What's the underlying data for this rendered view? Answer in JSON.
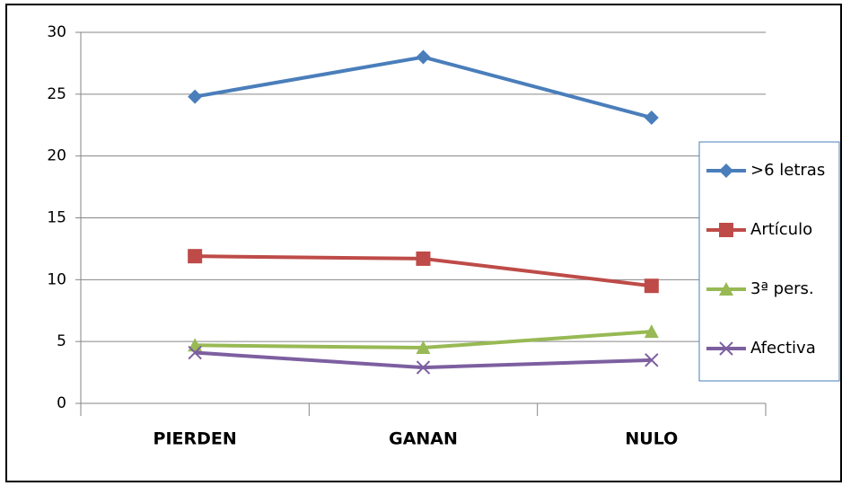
{
  "chart_data": {
    "type": "line",
    "categories": [
      "PIERDEN",
      "GANAN",
      "NULO"
    ],
    "series": [
      {
        "name": ">6 letras",
        "color": "#4a7ebb",
        "marker": "diamond",
        "values": [
          24.8,
          28,
          23.1
        ]
      },
      {
        "name": "Artículo",
        "color": "#be4b48",
        "marker": "square",
        "values": [
          11.9,
          11.7,
          9.5
        ]
      },
      {
        "name": "3ª pers.",
        "color": "#98b954",
        "marker": "triangle",
        "values": [
          4.7,
          4.5,
          5.8
        ]
      },
      {
        "name": "Afectiva",
        "color": "#7d5fa0",
        "marker": "x",
        "values": [
          4.1,
          2.9,
          3.5
        ]
      }
    ],
    "ylim": [
      0,
      30
    ],
    "yticks": [
      0,
      5,
      10,
      15,
      20,
      25,
      30
    ],
    "grid": true,
    "legend": "right"
  }
}
